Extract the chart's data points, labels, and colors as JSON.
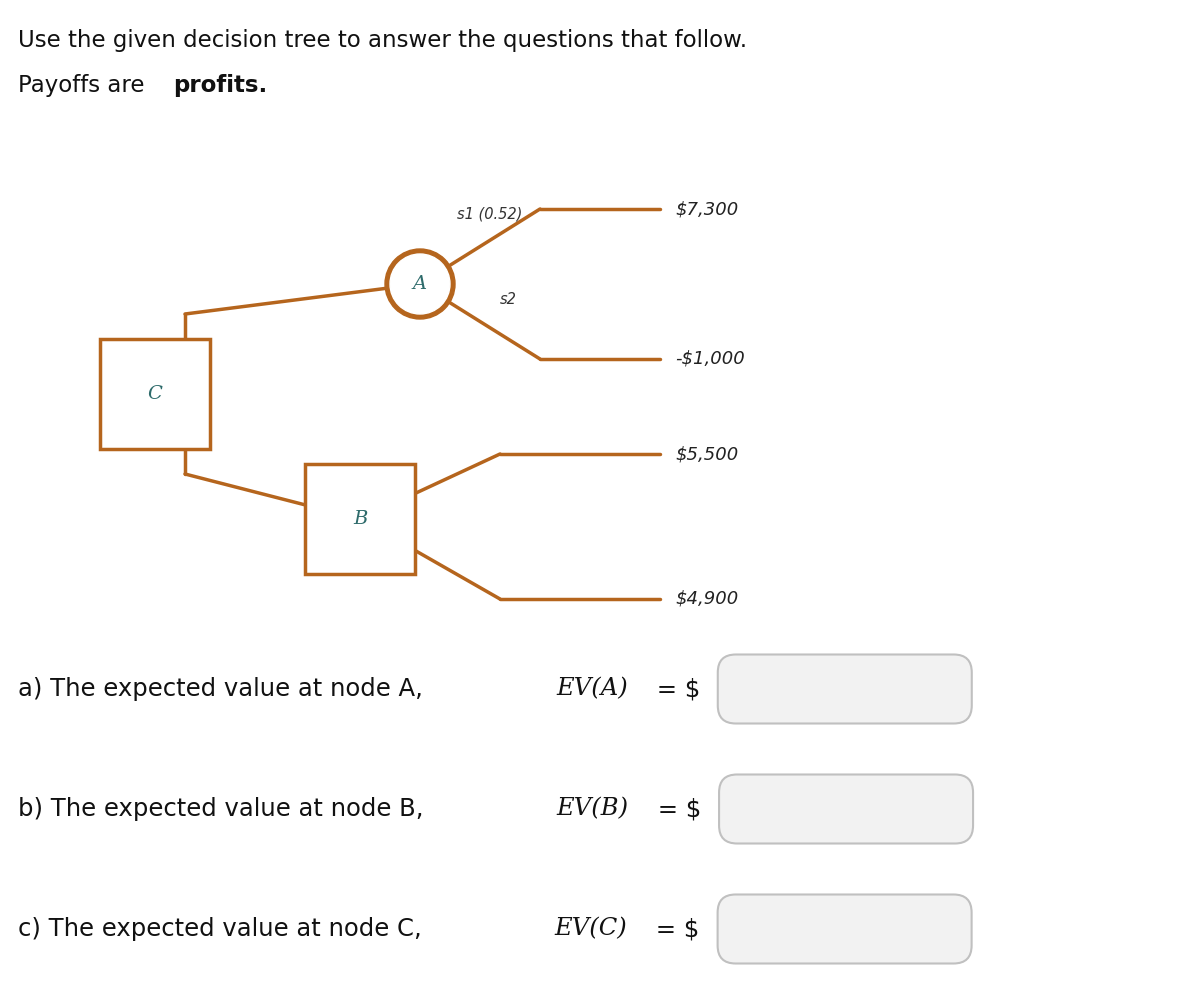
{
  "title_line1": "Use the given decision tree to answer the questions that follow.",
  "title_line2_pre": "Payoffs are ",
  "title_line2_bold": "profits.",
  "bg_color": "#ffffff",
  "tree_color": "#B5651D",
  "text_color": "#111111",
  "payoff_s1": "$7,300",
  "payoff_s2": "-$1,000",
  "payoff_B1": "$5,500",
  "payoff_B2": "$4,900",
  "label_s1": "s1 (0.52)",
  "label_s2": "s2",
  "q_pre": [
    "a) The expected value at node A, ",
    "b) The expected value at node B, ",
    "c) The expected value at node C, "
  ],
  "q_ev": [
    "EV(A)",
    "EV(B)",
    "EV(C)"
  ],
  "q_post": [
    " = $",
    " = $",
    " = $"
  ],
  "box_fill": "#f2f2f2",
  "box_edge": "#c0c0c0",
  "node_text_color": "#2e6b6b"
}
